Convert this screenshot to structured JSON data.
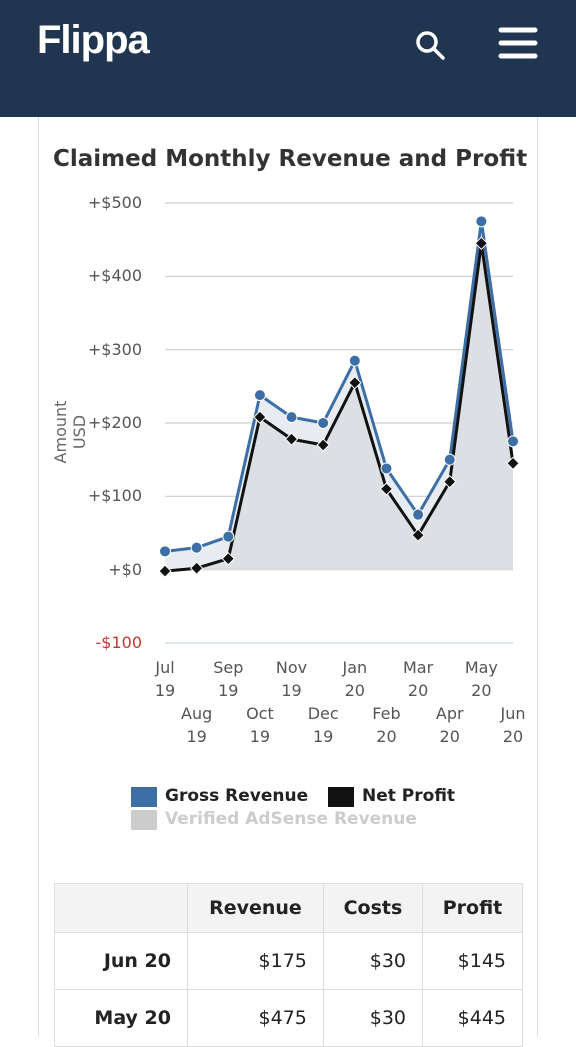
{
  "header": {
    "logo": "Flippa"
  },
  "chart_data": {
    "type": "line",
    "title": "Claimed Monthly Revenue and Profit",
    "y_label": "Amount USD",
    "categories": [
      "Jul 19",
      "Aug 19",
      "Sep 19",
      "Oct 19",
      "Nov 19",
      "Dec 19",
      "Jan 20",
      "Feb 20",
      "Mar 20",
      "Apr 20",
      "May 20",
      "Jun 20"
    ],
    "series": [
      {
        "name": "Gross Revenue",
        "color": "#3d6ea5",
        "values": [
          25,
          30,
          45,
          238,
          208,
          200,
          285,
          138,
          75,
          150,
          475,
          175
        ]
      },
      {
        "name": "Net Profit",
        "color": "#111111",
        "values": [
          -2,
          2,
          15,
          208,
          178,
          170,
          255,
          110,
          47,
          120,
          445,
          145
        ]
      }
    ],
    "disabled_legend": {
      "name": "Verified AdSense Revenue",
      "color": "#cccccc"
    },
    "ylim": [
      -100,
      500
    ],
    "yticks": [
      {
        "value": -100,
        "label": "-$100"
      },
      {
        "value": 0,
        "label": "+$0"
      },
      {
        "value": 100,
        "label": "+$100"
      },
      {
        "value": 200,
        "label": "+$200"
      },
      {
        "value": 300,
        "label": "+$300"
      },
      {
        "value": 400,
        "label": "+$400"
      },
      {
        "value": 500,
        "label": "+$500"
      }
    ],
    "grid": true
  },
  "table": {
    "headers": [
      "Revenue",
      "Costs",
      "Profit"
    ],
    "rows": [
      [
        "Jun 20",
        "$175",
        "$30",
        "$145"
      ],
      [
        "May 20",
        "$475",
        "$30",
        "$445"
      ]
    ]
  }
}
